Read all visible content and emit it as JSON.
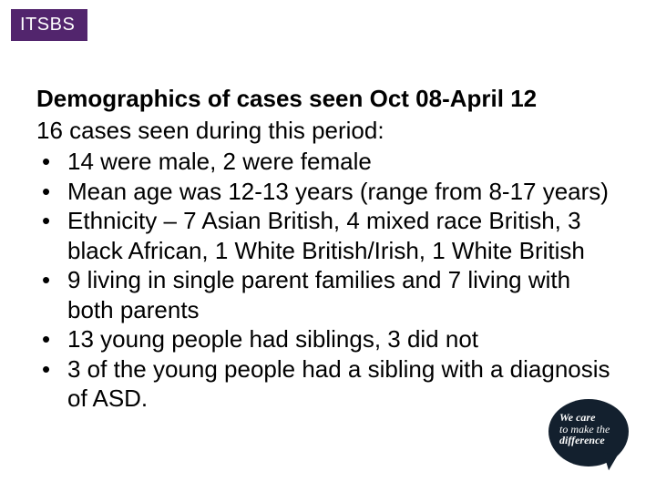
{
  "colors": {
    "tag_bg": "#52256d",
    "logo_bg": "#13202e",
    "text": "#000000",
    "white": "#ffffff"
  },
  "tag": {
    "label": "ITSBS"
  },
  "slide": {
    "title": "Demographics of cases seen Oct 08-April 12",
    "subtitle": "16 cases seen during this period:",
    "bullets": [
      "14 were male, 2 were female",
      "Mean age was 12-13 years (range from 8-17 years)",
      "Ethnicity – 7 Asian British, 4 mixed race British, 3 black African, 1 White British/Irish, 1 White British",
      "9 living in single parent families and 7 living with both parents",
      "13 young people had siblings, 3 did not",
      "3 of the young people had a sibling with a diagnosis of ASD."
    ]
  },
  "logo": {
    "line1": "We care",
    "line2": "to make the",
    "line3": "difference"
  }
}
